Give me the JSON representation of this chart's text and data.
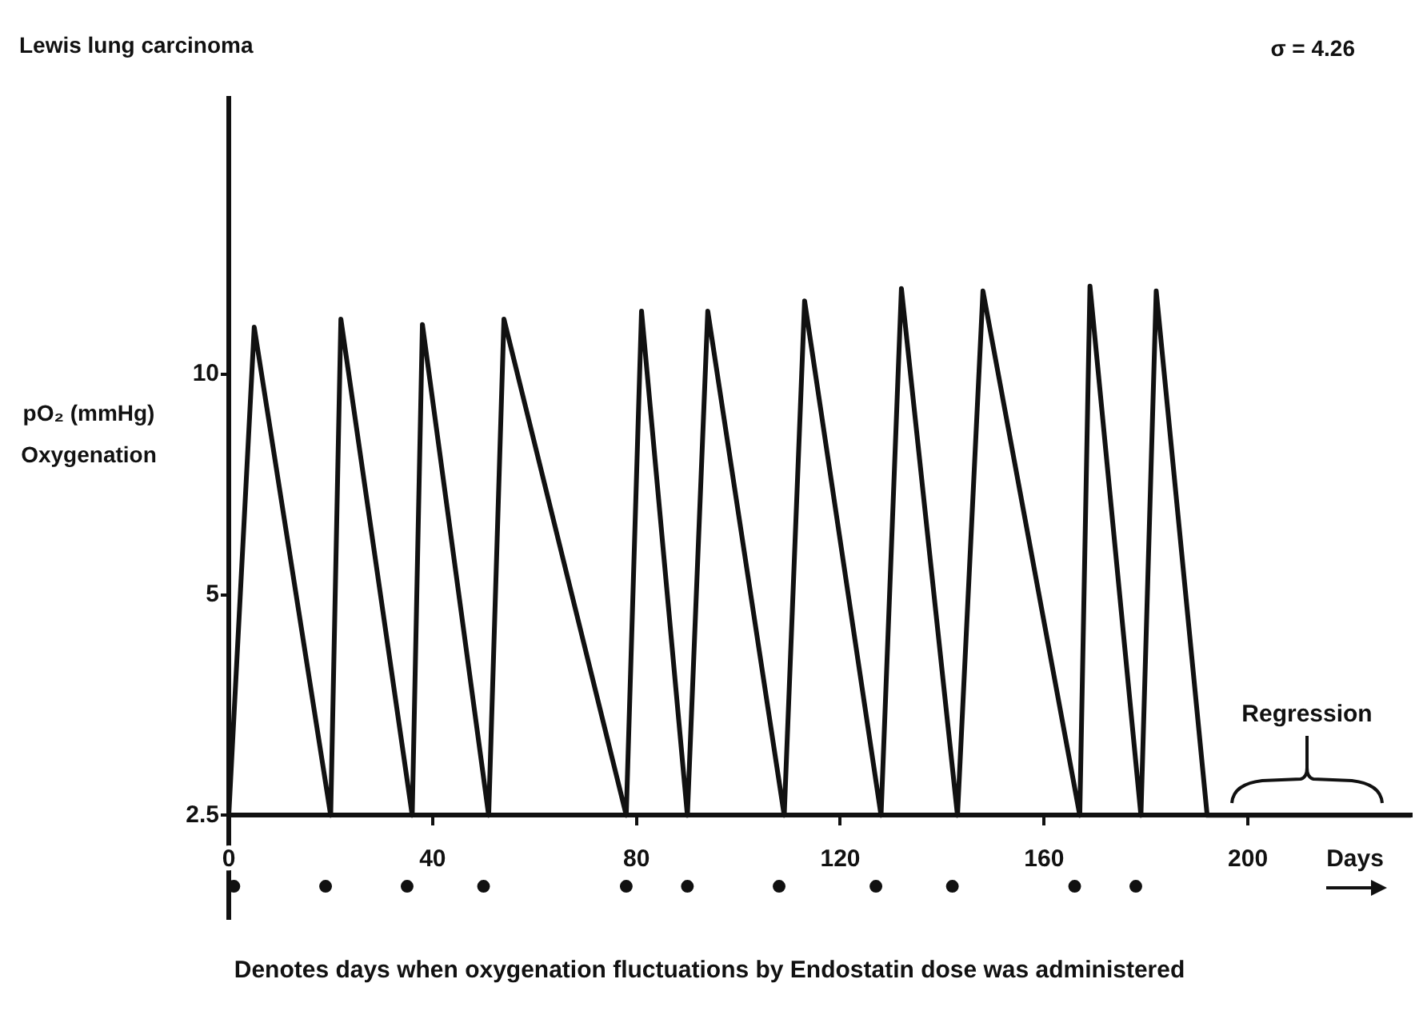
{
  "chart_data": {
    "type": "line",
    "title": "Lewis lung carcinoma",
    "xlabel": "Days",
    "ylabel": "pO₂ (mmHg) Oxygenation",
    "annotations": [
      "σ = 4.26",
      "Regression",
      "Denotes days when oxygenation fluctuations by Endostatin dose was administered"
    ],
    "series": [
      {
        "type": "line",
        "color": "#111111",
        "marker": "none",
        "x": [
          0,
          5,
          20,
          22,
          36,
          38,
          51,
          54,
          78,
          81,
          90,
          94,
          109,
          113,
          128,
          132,
          143,
          148,
          167,
          169,
          179,
          182,
          192,
          232
        ],
        "values": [
          2.5,
          11.6,
          2.5,
          11.9,
          2.5,
          11.7,
          2.5,
          11.9,
          2.5,
          12.2,
          2.5,
          12.2,
          2.5,
          12.6,
          2.5,
          13.1,
          2.5,
          13,
          2.5,
          13.2,
          2.5,
          13,
          2.5,
          2.5
        ]
      },
      {
        "type": "scatter",
        "color": "#111111",
        "marker": "circle",
        "x": [
          1,
          19,
          35,
          50,
          78,
          90,
          108,
          127,
          142,
          166,
          178
        ],
        "values": [
          2,
          2,
          2,
          2,
          2,
          2,
          2,
          2,
          2,
          2,
          2
        ]
      }
    ],
    "xlim": [
      0,
      232
    ],
    "xticks": [
      0,
      40,
      80,
      120,
      160,
      200
    ],
    "ylim": [
      1.8,
      24
    ],
    "yticks": [
      2.5,
      5,
      10
    ],
    "log": true,
    "grid": false,
    "legend": false
  }
}
